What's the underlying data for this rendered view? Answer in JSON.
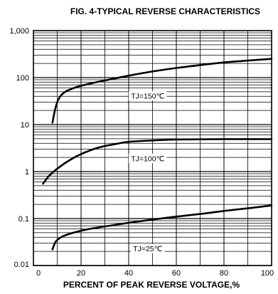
{
  "chart_data": {
    "type": "line",
    "title": "FIG. 4-TYPICAL REVERSE CHARACTERISTICS",
    "xlabel": "PERCENT OF PEAK REVERSE VOLTAGE,%",
    "ylabel": "",
    "xlim": [
      0,
      100
    ],
    "ylim": [
      0.01,
      1000
    ],
    "y_scale": "log",
    "grid": true,
    "x_ticks": [
      "0",
      "20",
      "40",
      "60",
      "80",
      "100"
    ],
    "y_ticks": [
      "1,000",
      "100",
      "10",
      "1",
      "0.1",
      "0.01"
    ],
    "series": [
      {
        "name": "TJ=150℃",
        "x": [
          8,
          9,
          10,
          11,
          12,
          14,
          17,
          20,
          25,
          30,
          40,
          50,
          60,
          70,
          80,
          90,
          100
        ],
        "y": [
          11,
          20,
          30,
          38,
          44,
          52,
          60,
          67,
          77,
          87,
          110,
          135,
          160,
          185,
          210,
          230,
          250
        ]
      },
      {
        "name": "TJ=100℃",
        "x": [
          4,
          6,
          8,
          10,
          14,
          18,
          22,
          26,
          30,
          35,
          40,
          50,
          60,
          70,
          80,
          90,
          100
        ],
        "y": [
          0.55,
          0.75,
          0.95,
          1.15,
          1.6,
          2.1,
          2.6,
          3.1,
          3.5,
          3.9,
          4.3,
          4.6,
          4.8,
          4.85,
          4.9,
          4.9,
          4.9
        ]
      },
      {
        "name": "TJ=25℃",
        "x": [
          8,
          9,
          10,
          12,
          15,
          20,
          25,
          30,
          40,
          50,
          60,
          70,
          80,
          90,
          100
        ],
        "y": [
          0.022,
          0.03,
          0.035,
          0.041,
          0.047,
          0.055,
          0.062,
          0.068,
          0.081,
          0.095,
          0.11,
          0.125,
          0.145,
          0.165,
          0.19
        ]
      }
    ],
    "annotations": [
      {
        "text": "TJ=150℃",
        "x": 48,
        "y": 41
      },
      {
        "text": "TJ=100℃",
        "x": 48,
        "y": 1.9
      },
      {
        "text": "TJ=25℃",
        "x": 48,
        "y": 0.023
      }
    ]
  }
}
